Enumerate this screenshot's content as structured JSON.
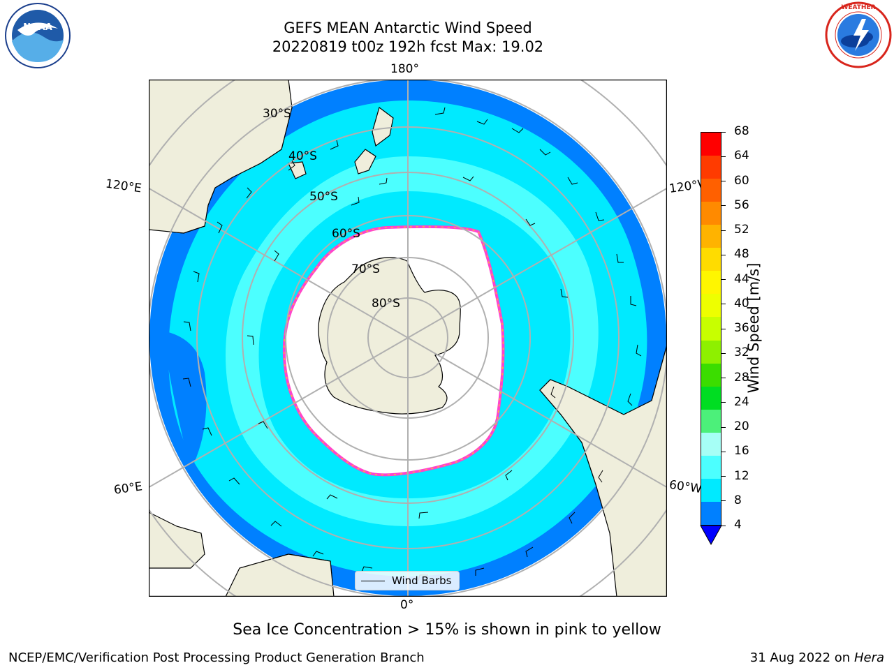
{
  "header": {
    "title": "GEFS MEAN Antarctic Wind Speed",
    "subtitle": "20220819 t00z 192h fcst   Max: 19.02"
  },
  "logos": {
    "left": {
      "name": "NOAA",
      "ring_text": "NATIONAL OCEANIC AND ATMOSPHERIC ADMINISTRATION · U.S. DEPARTMENT OF COMMERCE"
    },
    "right": {
      "name": "NATIONAL WEATHER SERVICE"
    }
  },
  "map": {
    "longitude_labels": {
      "top": "180°",
      "bottom": "0°",
      "upper_left": "120°E",
      "upper_right": "120°W",
      "lower_left": "60°E",
      "lower_right": "60°W"
    },
    "latitude_labels": [
      "30°S",
      "40°S",
      "50°S",
      "60°S",
      "70°S",
      "80°S"
    ],
    "legend_label": "Wind Barbs"
  },
  "colorbar": {
    "label": "Wind Speed [m/s]",
    "ticks": [
      "68",
      "64",
      "60",
      "56",
      "52",
      "48",
      "44",
      "40",
      "36",
      "32",
      "28",
      "24",
      "20",
      "16",
      "12",
      "8",
      "4"
    ],
    "colors": [
      "#ff0000",
      "#ff3b00",
      "#ff6000",
      "#ff8a00",
      "#ffb300",
      "#ffdc00",
      "#fff600",
      "#eeff00",
      "#c8ff00",
      "#8ef000",
      "#3bdd00",
      "#00dd22",
      "#4cf07a",
      "#a6fff6",
      "#4cffff",
      "#00eaff",
      "#0080ff"
    ],
    "under_color": "#0000ff"
  },
  "notes": {
    "sea_ice": "Sea Ice Concentration > 15% is shown in pink to yellow",
    "credit": "NCEP/EMC/Verification Post Processing Product Generation Branch",
    "date": "31 Aug 2022 on",
    "machine": "Hera"
  },
  "colors": {
    "land": "#efeedc",
    "ocean_low": "#0080ff",
    "ocean_mid": "#00eaff",
    "ocean_high": "#4cffff",
    "ice_edge": "#ff44cc",
    "ice_fringe": "#ffcc22",
    "grid": "#b0b0b0",
    "antarctica": "#efeedc"
  }
}
